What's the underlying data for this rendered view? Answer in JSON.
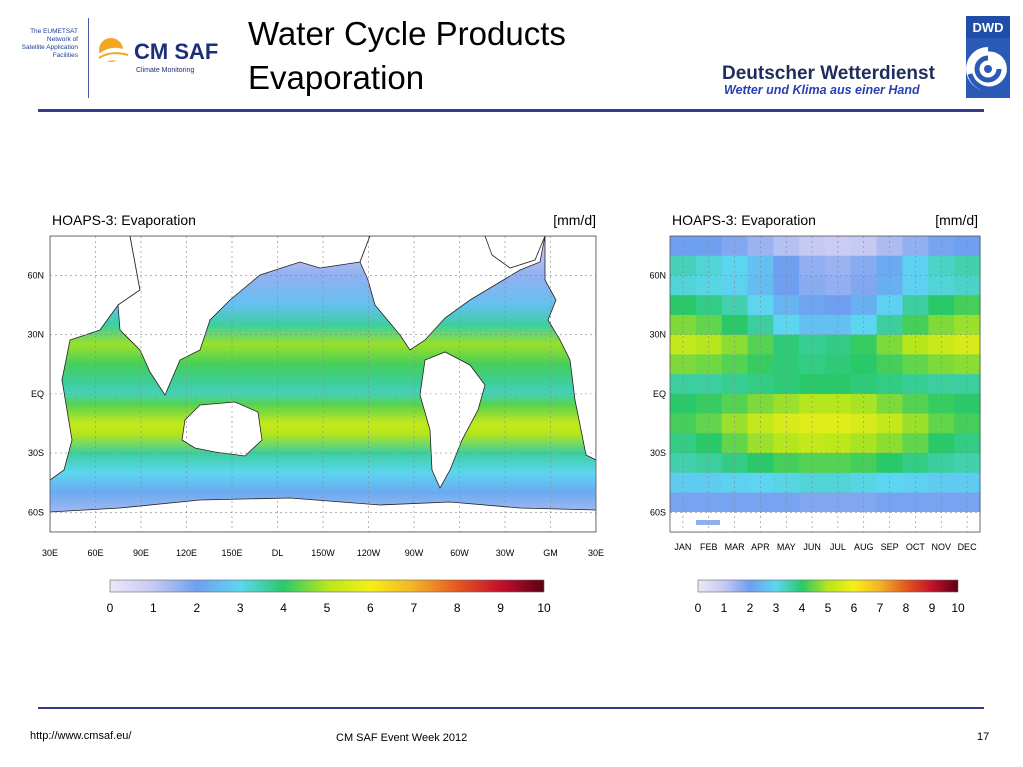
{
  "logos": {
    "eumetsat_text": [
      "The EUMETSAT",
      "Network of",
      "Satellite Application",
      "Facilities"
    ],
    "cmsaf_name": "CM SAF",
    "cmsaf_sub": "Climate Monitoring",
    "dwd_badge": "DWD",
    "dwd_name": "Deutscher Wetterdienst",
    "dwd_slogan": "Wetter und Klima aus einer Hand"
  },
  "header": {
    "title_line1": "Water Cycle Products",
    "title_line2": "Evaporation"
  },
  "footer": {
    "url": "http://www.cmsaf.eu/",
    "event": "CM SAF Event Week 2012",
    "page": "17"
  },
  "colors": {
    "rule": "#333c8f",
    "coast": "#222222",
    "land": "#ffffff"
  },
  "chart_data": [
    {
      "type": "heatmap",
      "title": "HOAPS-3: Evaporation",
      "unit": "[mm/d]",
      "x_ticks": [
        "30E",
        "60E",
        "90E",
        "120E",
        "150E",
        "DL",
        "150W",
        "120W",
        "90W",
        "60W",
        "30W",
        "GM",
        "30E"
      ],
      "y_ticks": [
        "60N",
        "30N",
        "EQ",
        "30S",
        "60S"
      ],
      "colorbar": {
        "min": 0,
        "max": 10,
        "ticks": [
          "0",
          "1",
          "2",
          "3",
          "4",
          "5",
          "6",
          "7",
          "8",
          "9",
          "10"
        ]
      },
      "zonal_mean_profile": {
        "lat": [
          75,
          60,
          45,
          35,
          25,
          15,
          5,
          0,
          -5,
          -15,
          -20,
          -30,
          -40,
          -50,
          -60
        ],
        "value": [
          1.0,
          1.6,
          2.6,
          3.6,
          4.8,
          4.2,
          3.6,
          3.4,
          4.3,
          5.2,
          5.0,
          3.6,
          3.0,
          2.2,
          1.4
        ]
      },
      "grid": true
    },
    {
      "type": "heatmap",
      "title": "HOAPS-3: Evaporation",
      "unit": "[mm/d]",
      "x_ticks": [
        "JAN",
        "FEB",
        "MAR",
        "APR",
        "MAY",
        "JUN",
        "JUL",
        "AUG",
        "SEP",
        "OCT",
        "NOV",
        "DEC"
      ],
      "y_ticks": [
        "60N",
        "30N",
        "EQ",
        "30S",
        "60S"
      ],
      "colorbar": {
        "min": 0,
        "max": 10,
        "ticks": [
          "0",
          "1",
          "2",
          "3",
          "4",
          "5",
          "6",
          "7",
          "8",
          "9",
          "10"
        ]
      },
      "lat": [
        75,
        65,
        55,
        45,
        35,
        25,
        15,
        5,
        -5,
        -15,
        -25,
        -35,
        -45,
        -55,
        -65
      ],
      "values": [
        [
          2.0,
          2.0,
          1.8,
          1.5,
          1.2,
          1.0,
          0.9,
          1.0,
          1.3,
          1.6,
          1.9,
          2.0
        ],
        [
          3.4,
          3.2,
          3.0,
          2.6,
          2.0,
          1.6,
          1.5,
          1.7,
          2.2,
          2.9,
          3.3,
          3.5
        ],
        [
          3.2,
          3.1,
          2.9,
          2.5,
          2.0,
          1.7,
          1.6,
          1.8,
          2.3,
          2.9,
          3.2,
          3.3
        ],
        [
          4.0,
          3.8,
          3.5,
          3.0,
          2.4,
          2.1,
          2.0,
          2.3,
          2.9,
          3.6,
          4.0,
          4.2
        ],
        [
          4.6,
          4.4,
          4.0,
          3.6,
          3.0,
          2.6,
          2.6,
          3.0,
          3.6,
          4.2,
          4.6,
          4.8
        ],
        [
          5.2,
          5.0,
          4.7,
          4.3,
          3.9,
          3.7,
          3.8,
          4.1,
          4.6,
          5.0,
          5.3,
          5.5
        ],
        [
          4.6,
          4.5,
          4.3,
          4.1,
          3.9,
          3.8,
          3.9,
          4.0,
          4.2,
          4.4,
          4.6,
          4.7
        ],
        [
          3.6,
          3.6,
          3.7,
          3.8,
          3.9,
          4.0,
          4.0,
          3.9,
          3.8,
          3.7,
          3.6,
          3.6
        ],
        [
          4.0,
          4.1,
          4.3,
          4.6,
          4.8,
          5.0,
          5.0,
          4.9,
          4.6,
          4.3,
          4.1,
          4.0
        ],
        [
          4.2,
          4.4,
          4.8,
          5.2,
          5.5,
          5.7,
          5.7,
          5.5,
          5.2,
          4.8,
          4.4,
          4.2
        ],
        [
          3.8,
          4.0,
          4.4,
          4.8,
          5.0,
          5.2,
          5.1,
          4.9,
          4.7,
          4.4,
          4.0,
          3.8
        ],
        [
          3.5,
          3.6,
          3.8,
          4.0,
          4.2,
          4.3,
          4.3,
          4.2,
          4.0,
          3.8,
          3.6,
          3.5
        ],
        [
          2.8,
          2.8,
          2.9,
          3.0,
          3.1,
          3.2,
          3.2,
          3.1,
          3.0,
          2.9,
          2.8,
          2.8
        ],
        [
          1.9,
          1.9,
          1.9,
          1.9,
          1.9,
          1.8,
          1.8,
          1.8,
          1.9,
          1.9,
          1.9,
          1.9
        ],
        [
          1.0,
          1.0,
          0.9,
          0.8,
          0.6,
          0.5,
          0.4,
          0.5,
          0.6,
          0.8,
          0.9,
          1.0
        ]
      ],
      "grid": true
    }
  ]
}
